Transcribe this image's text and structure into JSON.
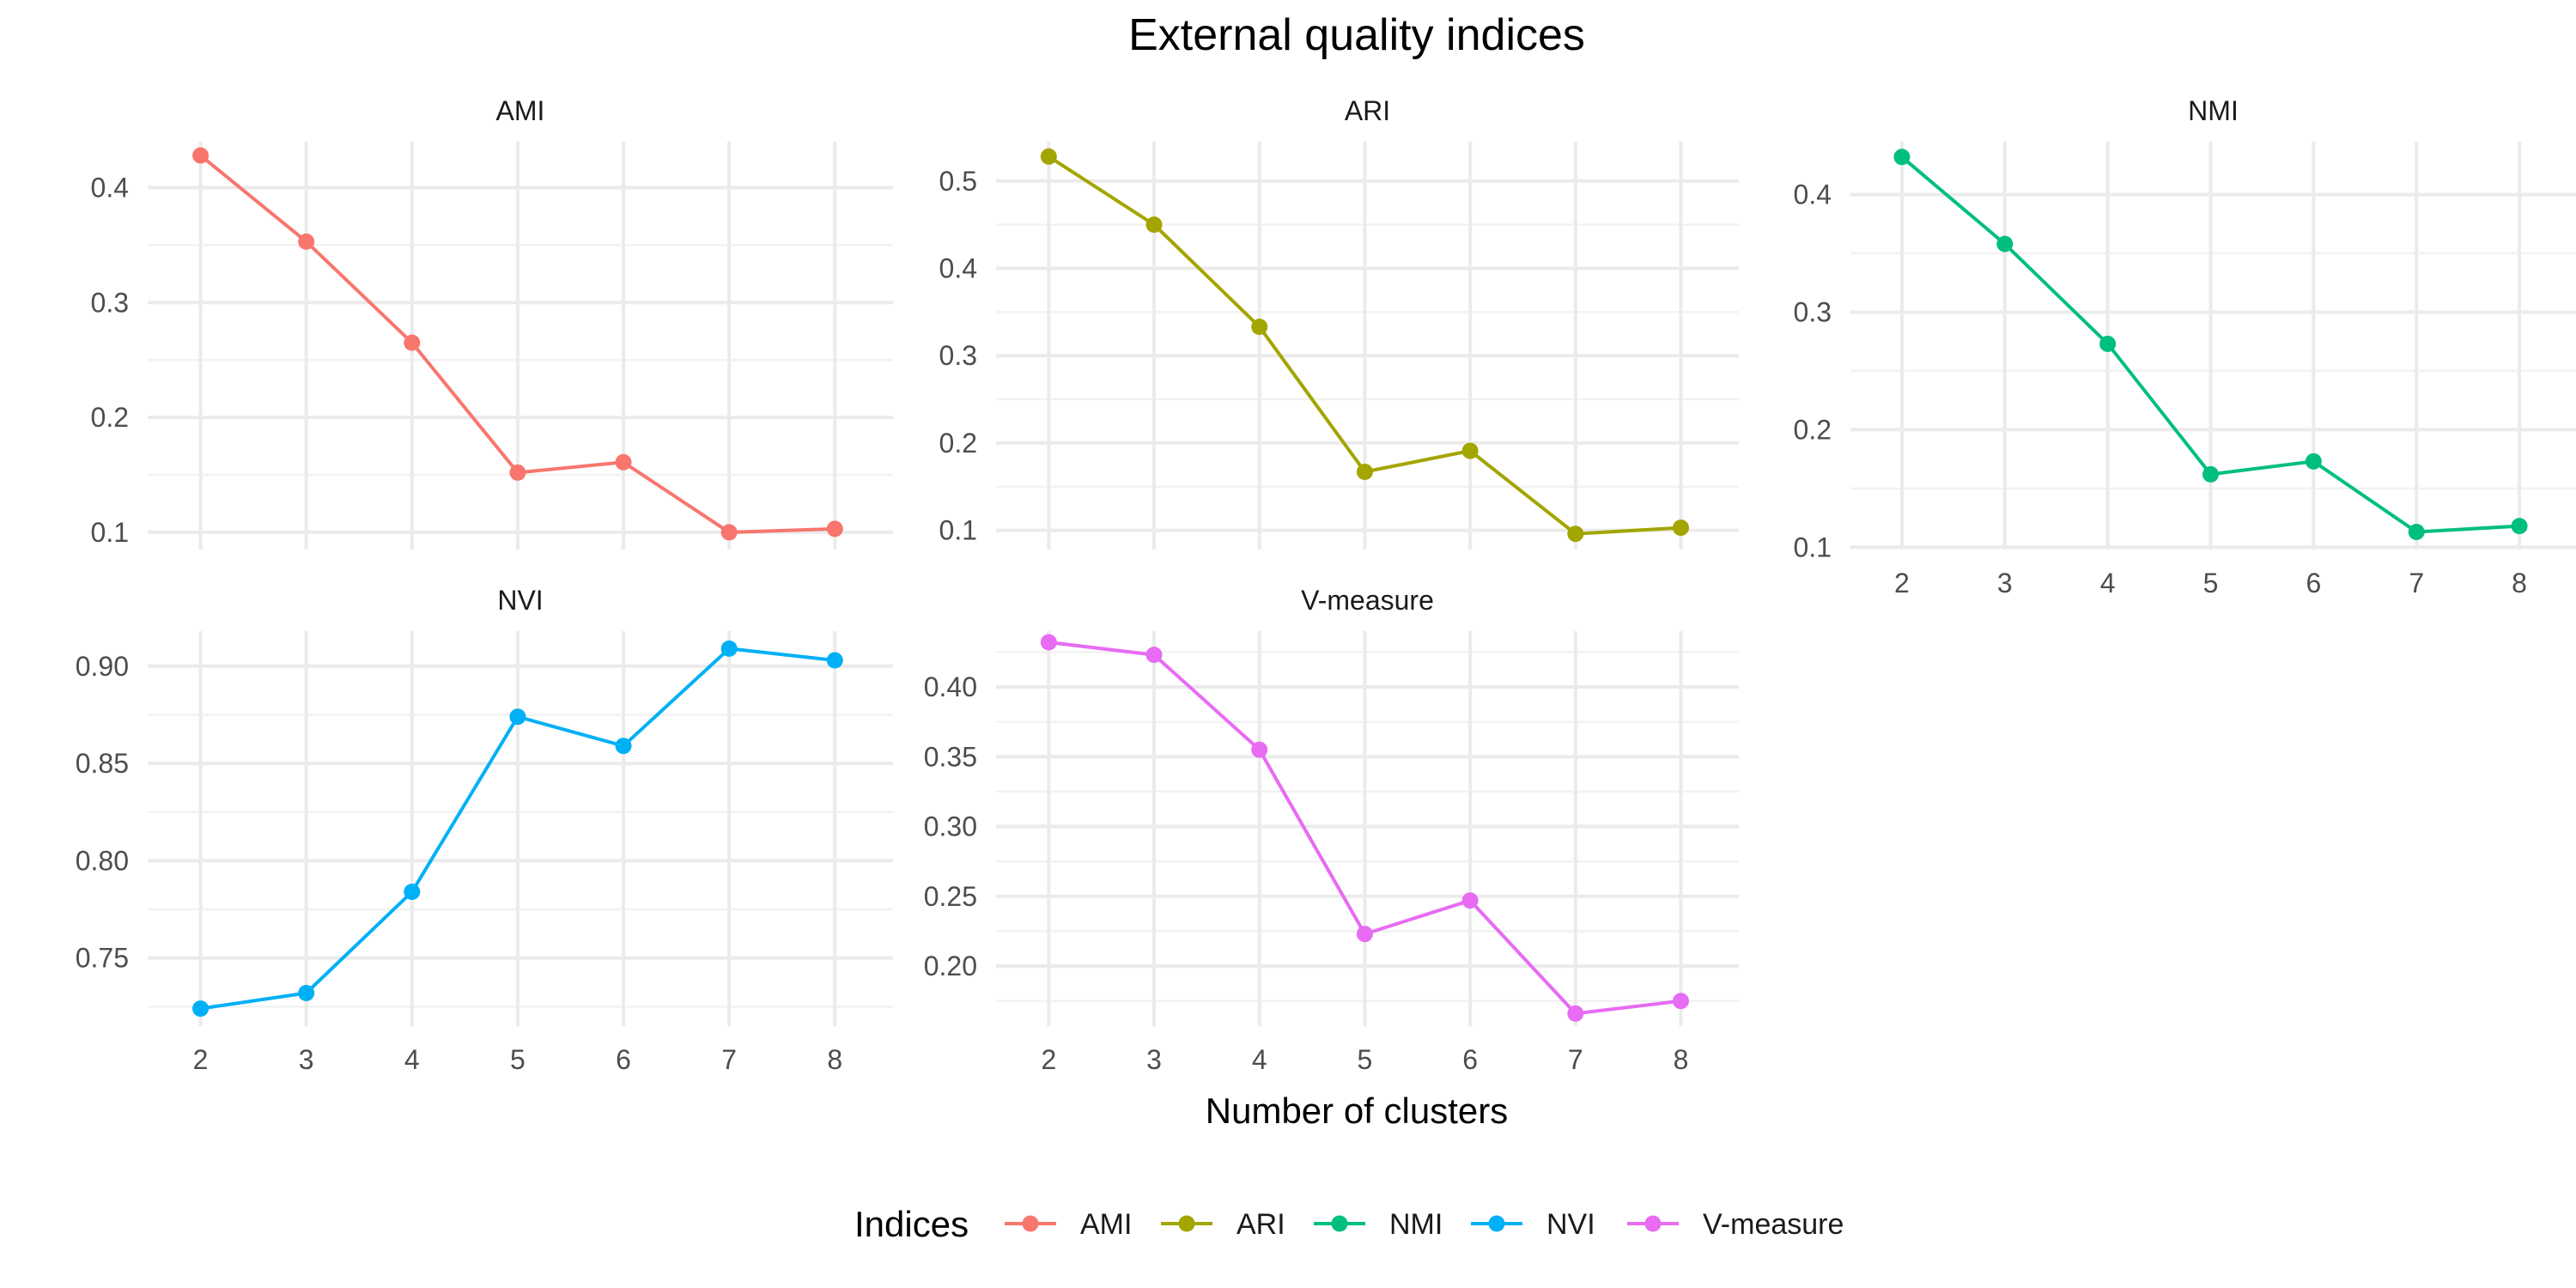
{
  "chart_data": {
    "type": "line",
    "title": "External quality indices",
    "xlabel": "Number of clusters",
    "ylabel": "",
    "x": [
      2,
      3,
      4,
      5,
      6,
      7,
      8
    ],
    "xticks": [
      "2",
      "3",
      "4",
      "5",
      "6",
      "7",
      "8"
    ],
    "legend": {
      "title": "Indices",
      "placement": "bottom"
    },
    "grid": true,
    "panels": [
      {
        "name": "AMI",
        "color": "#F8766D",
        "values": [
          0.428,
          0.353,
          0.265,
          0.152,
          0.161,
          0.1,
          0.103
        ],
        "ylim": [
          0.085,
          0.44
        ],
        "yticks": [
          0.1,
          0.2,
          0.3,
          0.4
        ],
        "ytick_labels": [
          "0.1",
          "0.2",
          "0.3",
          "0.4"
        ]
      },
      {
        "name": "ARI",
        "color": "#A3A500",
        "values": [
          0.528,
          0.45,
          0.333,
          0.167,
          0.191,
          0.096,
          0.103
        ],
        "ylim": [
          0.078,
          0.545
        ],
        "yticks": [
          0.1,
          0.2,
          0.3,
          0.4,
          0.5
        ],
        "ytick_labels": [
          "0.1",
          "0.2",
          "0.3",
          "0.4",
          "0.5"
        ]
      },
      {
        "name": "NMI",
        "color": "#00BF7D",
        "values": [
          0.432,
          0.358,
          0.273,
          0.162,
          0.173,
          0.113,
          0.118
        ],
        "ylim": [
          0.098,
          0.445
        ],
        "yticks": [
          0.1,
          0.2,
          0.3,
          0.4
        ],
        "ytick_labels": [
          "0.1",
          "0.2",
          "0.3",
          "0.4"
        ]
      },
      {
        "name": "NVI",
        "color": "#00B0F6",
        "values": [
          0.724,
          0.732,
          0.784,
          0.874,
          0.859,
          0.909,
          0.903
        ],
        "ylim": [
          0.715,
          0.918
        ],
        "yticks": [
          0.75,
          0.8,
          0.85,
          0.9
        ],
        "ytick_labels": [
          "0.75",
          "0.80",
          "0.85",
          "0.90"
        ]
      },
      {
        "name": "V-measure",
        "color": "#E76BF3",
        "values": [
          0.432,
          0.423,
          0.355,
          0.223,
          0.247,
          0.166,
          0.175
        ],
        "ylim": [
          0.157,
          0.44
        ],
        "yticks": [
          0.2,
          0.25,
          0.3,
          0.35,
          0.4
        ],
        "ytick_labels": [
          "0.20",
          "0.25",
          "0.30",
          "0.35",
          "0.40"
        ]
      }
    ]
  }
}
